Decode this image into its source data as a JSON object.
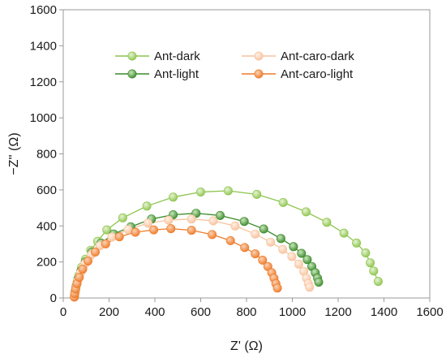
{
  "chart_data": {
    "type": "scatter",
    "xlabel": "Z' (Ω)",
    "ylabel": "−Z'' (Ω)",
    "xlim": [
      0,
      1600
    ],
    "ylim": [
      0,
      1600
    ],
    "xticks": [
      0,
      200,
      400,
      600,
      800,
      1000,
      1200,
      1400,
      1600
    ],
    "yticks": [
      0,
      200,
      400,
      600,
      800,
      1000,
      1200,
      1400,
      1600
    ],
    "grid": false,
    "legend_position": "top-center",
    "series": [
      {
        "name": "Ant-dark",
        "color": "#8dc44d",
        "marker_highlight": "#e6f4d2",
        "points": [
          [
            50,
            8
          ],
          [
            52,
            30
          ],
          [
            55,
            55
          ],
          [
            60,
            85
          ],
          [
            68,
            125
          ],
          [
            80,
            170
          ],
          [
            97,
            215
          ],
          [
            120,
            265
          ],
          [
            150,
            315
          ],
          [
            190,
            378
          ],
          [
            260,
            445
          ],
          [
            365,
            510
          ],
          [
            480,
            560
          ],
          [
            600,
            588
          ],
          [
            720,
            595
          ],
          [
            845,
            575
          ],
          [
            960,
            530
          ],
          [
            1060,
            478
          ],
          [
            1150,
            420
          ],
          [
            1225,
            360
          ],
          [
            1280,
            305
          ],
          [
            1320,
            250
          ],
          [
            1340,
            195
          ],
          [
            1355,
            150
          ],
          [
            1375,
            92
          ]
        ]
      },
      {
        "name": "Ant-light",
        "color": "#3a8a2a",
        "marker_highlight": "#c9e6bc",
        "points": [
          [
            50,
            10
          ],
          [
            52,
            35
          ],
          [
            56,
            65
          ],
          [
            64,
            105
          ],
          [
            77,
            150
          ],
          [
            96,
            200
          ],
          [
            125,
            255
          ],
          [
            165,
            305
          ],
          [
            220,
            355
          ],
          [
            295,
            395
          ],
          [
            385,
            438
          ],
          [
            480,
            462
          ],
          [
            580,
            470
          ],
          [
            685,
            458
          ],
          [
            790,
            425
          ],
          [
            875,
            383
          ],
          [
            950,
            330
          ],
          [
            1005,
            285
          ],
          [
            1040,
            248
          ],
          [
            1065,
            213
          ],
          [
            1085,
            175
          ],
          [
            1100,
            140
          ],
          [
            1110,
            110
          ],
          [
            1115,
            88
          ]
        ]
      },
      {
        "name": "Ant-caro-dark",
        "color": "#f7c29d",
        "marker_highlight": "#fff1e6",
        "points": [
          [
            50,
            8
          ],
          [
            52,
            30
          ],
          [
            56,
            60
          ],
          [
            64,
            98
          ],
          [
            76,
            140
          ],
          [
            95,
            190
          ],
          [
            122,
            240
          ],
          [
            160,
            290
          ],
          [
            212,
            338
          ],
          [
            283,
            380
          ],
          [
            370,
            415
          ],
          [
            460,
            432
          ],
          [
            560,
            438
          ],
          [
            655,
            428
          ],
          [
            750,
            400
          ],
          [
            838,
            355
          ],
          [
            905,
            310
          ],
          [
            958,
            270
          ],
          [
            998,
            230
          ],
          [
            1028,
            188
          ],
          [
            1050,
            148
          ],
          [
            1062,
            110
          ],
          [
            1070,
            80
          ],
          [
            1075,
            60
          ]
        ]
      },
      {
        "name": "Ant-caro-light",
        "color": "#ee7a28",
        "marker_highlight": "#fbd2b4",
        "points": [
          [
            48,
            5
          ],
          [
            50,
            25
          ],
          [
            54,
            50
          ],
          [
            60,
            80
          ],
          [
            70,
            115
          ],
          [
            85,
            160
          ],
          [
            108,
            205
          ],
          [
            140,
            255
          ],
          [
            185,
            300
          ],
          [
            245,
            340
          ],
          [
            315,
            365
          ],
          [
            395,
            378
          ],
          [
            470,
            385
          ],
          [
            560,
            376
          ],
          [
            650,
            352
          ],
          [
            730,
            318
          ],
          [
            792,
            280
          ],
          [
            838,
            245
          ],
          [
            870,
            210
          ],
          [
            893,
            175
          ],
          [
            910,
            140
          ],
          [
            920,
            110
          ],
          [
            928,
            80
          ],
          [
            935,
            55
          ]
        ]
      }
    ]
  }
}
